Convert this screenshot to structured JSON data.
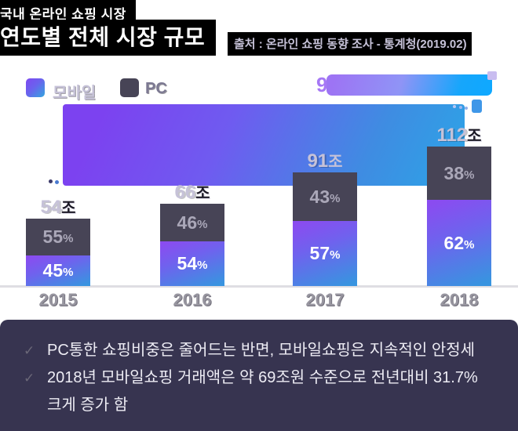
{
  "header": {
    "title_line1": "국내 온라인 쇼핑 시장",
    "title_line2": "연도별 전체 시장 규모",
    "source": "출처 : 온라인 쇼핑 동향 조사 - 통계청(2019.02)"
  },
  "legend": {
    "items": [
      {
        "label": "모바일"
      },
      {
        "label": "PC"
      }
    ]
  },
  "overlay": {
    "partial_digit": "9"
  },
  "chart_data": {
    "type": "bar",
    "stacked": true,
    "title": "연도별 전체 시장 규모",
    "categories": [
      "2015",
      "2016",
      "2017",
      "2018"
    ],
    "totals_trillion_krw": [
      54,
      66,
      91,
      112
    ],
    "total_labels": [
      "54조",
      "66조",
      "91조",
      "112조"
    ],
    "series": [
      {
        "name": "모바일",
        "percents": [
          45,
          54,
          57,
          62
        ]
      },
      {
        "name": "PC",
        "percents": [
          55,
          46,
          43,
          38
        ]
      }
    ],
    "unit_suffix": "조",
    "percent_suffix": "%",
    "ylim": [
      0,
      112
    ],
    "grid": false,
    "legend_position": "top-left"
  },
  "notes": {
    "check_icon": "✓",
    "items": [
      "PC통한 쇼핑비중은 줄어드는 반면, 모바일쇼핑은 지속적인 안정세",
      "2018년 모바일쇼핑 거래액은 약 69조원 수준으로 전년대비 31.7% 크게 증가 함"
    ]
  },
  "colors": {
    "mobile_gradient_start": "#8a4cf0",
    "mobile_gradient_end": "#3894e0",
    "pc": "#474456",
    "title_bg": "#000000",
    "label_light": "#c6c2d8",
    "axis_label": "#97959f",
    "bottom_panel_bg": "#373450"
  }
}
